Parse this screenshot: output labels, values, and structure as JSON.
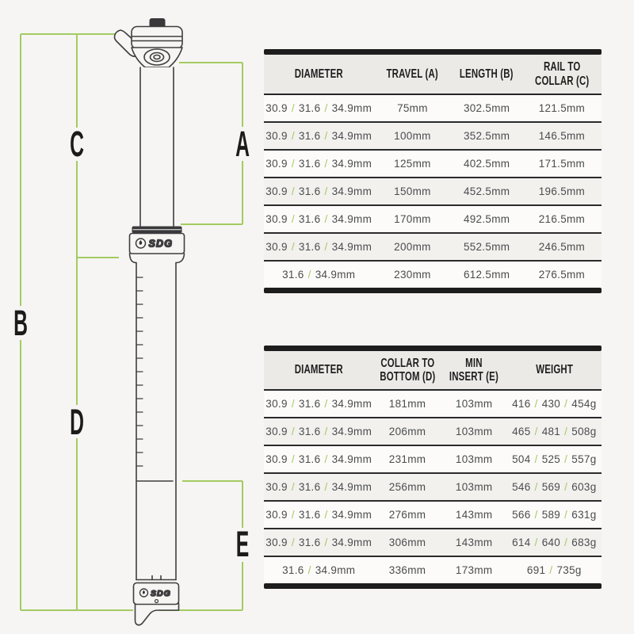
{
  "accent_green": "#a3cb62",
  "diagram": {
    "labels": {
      "a": "A",
      "b": "B",
      "c": "C",
      "d": "D",
      "e": "E"
    },
    "collar_logo": "SDG",
    "base_logo": "SDG"
  },
  "tables": [
    {
      "columns": [
        [
          "DIAMETER"
        ],
        [
          "TRAVEL (A)"
        ],
        [
          "LENGTH (B)"
        ],
        [
          "RAIL TO",
          "COLLAR (C)"
        ]
      ],
      "rows": [
        [
          "30.9 / 31.6 / 34.9mm",
          "75mm",
          "302.5mm",
          "121.5mm"
        ],
        [
          "30.9 / 31.6 / 34.9mm",
          "100mm",
          "352.5mm",
          "146.5mm"
        ],
        [
          "30.9 / 31.6 / 34.9mm",
          "125mm",
          "402.5mm",
          "171.5mm"
        ],
        [
          "30.9 / 31.6 / 34.9mm",
          "150mm",
          "452.5mm",
          "196.5mm"
        ],
        [
          "30.9 / 31.6 / 34.9mm",
          "170mm",
          "492.5mm",
          "216.5mm"
        ],
        [
          "30.9 / 31.6 / 34.9mm",
          "200mm",
          "552.5mm",
          "246.5mm"
        ],
        [
          "31.6 / 34.9mm",
          "230mm",
          "612.5mm",
          "276.5mm"
        ]
      ]
    },
    {
      "columns": [
        [
          "DIAMETER"
        ],
        [
          "COLLAR TO",
          "BOTTOM (D)"
        ],
        [
          "MIN",
          "INSERT (E)"
        ],
        [
          "WEIGHT"
        ]
      ],
      "rows": [
        [
          "30.9 / 31.6 / 34.9mm",
          "181mm",
          "103mm",
          "416 / 430 / 454g"
        ],
        [
          "30.9 / 31.6 / 34.9mm",
          "206mm",
          "103mm",
          "465 / 481 / 508g"
        ],
        [
          "30.9 / 31.6 / 34.9mm",
          "231mm",
          "103mm",
          "504 / 525 / 557g"
        ],
        [
          "30.9 / 31.6 / 34.9mm",
          "256mm",
          "103mm",
          "546 / 569 / 603g"
        ],
        [
          "30.9 / 31.6 / 34.9mm",
          "276mm",
          "143mm",
          "566 / 589 / 631g"
        ],
        [
          "30.9 / 31.6 / 34.9mm",
          "306mm",
          "143mm",
          "614 / 640 / 683g"
        ],
        [
          "31.6 / 34.9mm",
          "336mm",
          "173mm",
          "691 / 735g"
        ]
      ]
    }
  ]
}
